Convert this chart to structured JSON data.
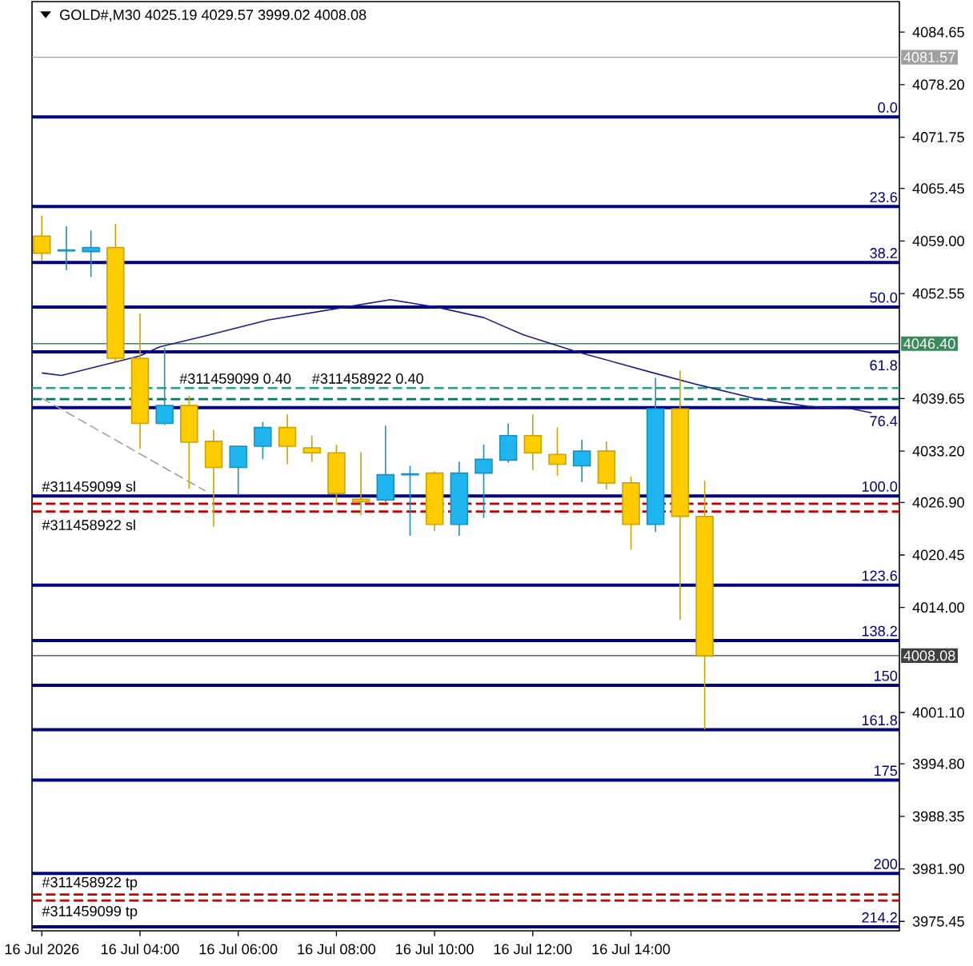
{
  "chart_data": {
    "type": "candlestick",
    "title": "GOLD#,M30 4025.19 4029.57 3999.02 4008.08",
    "x": [
      "2026-07-16T02:00",
      "2026-07-16T02:30",
      "2026-07-16T03:00",
      "2026-07-16T03:30",
      "2026-07-16T04:00",
      "2026-07-16T04:30",
      "2026-07-16T05:00",
      "2026-07-16T05:30",
      "2026-07-16T06:00",
      "2026-07-16T06:30",
      "2026-07-16T07:00",
      "2026-07-16T07:30",
      "2026-07-16T08:00",
      "2026-07-16T08:30",
      "2026-07-16T09:00",
      "2026-07-16T09:30",
      "2026-07-16T10:00",
      "2026-07-16T10:30",
      "2026-07-16T11:00",
      "2026-07-16T11:30",
      "2026-07-16T12:00",
      "2026-07-16T12:30",
      "2026-07-16T13:00",
      "2026-07-16T13:30",
      "2026-07-16T14:00",
      "2026-07-16T14:30",
      "2026-07-16T15:00",
      "2026-07-16T15:30"
    ],
    "xlim": [
      "2026-07-16T01:48",
      "2026-07-16T19:28"
    ],
    "xticks": [
      {
        "value": "2026-07-16T02:00",
        "label": "16 Jul 2026"
      },
      {
        "value": "2026-07-16T04:00",
        "label": "16 Jul 04:00"
      },
      {
        "value": "2026-07-16T06:00",
        "label": "16 Jul 06:00"
      },
      {
        "value": "2026-07-16T08:00",
        "label": "16 Jul 08:00"
      },
      {
        "value": "2026-07-16T10:00",
        "label": "16 Jul 10:00"
      },
      {
        "value": "2026-07-16T12:00",
        "label": "16 Jul 12:00"
      },
      {
        "value": "2026-07-16T14:00",
        "label": "16 Jul 14:00"
      }
    ],
    "ylim": [
      3974.3,
      4088.4
    ],
    "yticks": [
      {
        "value": 4084.65,
        "label": "4084.65"
      },
      {
        "value": 4078.2,
        "label": "4078.20"
      },
      {
        "value": 4071.75,
        "label": "4071.75"
      },
      {
        "value": 4065.45,
        "label": "4065.45"
      },
      {
        "value": 4059.0,
        "label": "4059.00"
      },
      {
        "value": 4052.55,
        "label": "4052.55"
      },
      {
        "value": 4039.65,
        "label": "4039.65"
      },
      {
        "value": 4033.2,
        "label": "4033.20"
      },
      {
        "value": 4026.9,
        "label": "4026.90"
      },
      {
        "value": 4020.45,
        "label": "4020.45"
      },
      {
        "value": 4014.0,
        "label": "4014.00"
      },
      {
        "value": 4001.1,
        "label": "4001.10"
      },
      {
        "value": 3994.8,
        "label": "3994.80"
      },
      {
        "value": 3988.35,
        "label": "3988.35"
      },
      {
        "value": 3981.9,
        "label": "3981.90"
      },
      {
        "value": 3975.45,
        "label": "3975.45"
      }
    ],
    "series": [
      {
        "ohlc": [
          [
            4059.6,
            4062.1,
            4056.6,
            4057.5
          ],
          [
            4057.8,
            4060.8,
            4055.4,
            4057.9
          ],
          [
            4057.7,
            4060.3,
            4054.6,
            4058.2
          ],
          [
            4058.2,
            4061.1,
            4044.2,
            4044.6
          ],
          [
            4044.6,
            4050.1,
            4033.5,
            4036.6
          ],
          [
            4036.6,
            4045.9,
            4036.4,
            4038.8
          ],
          [
            4038.8,
            4040.0,
            4028.6,
            4034.3
          ],
          [
            4034.4,
            4035.8,
            4023.9,
            4031.2
          ],
          [
            4031.2,
            4033.8,
            4027.8,
            4033.8
          ],
          [
            4033.8,
            4036.8,
            4032.2,
            4036.1
          ],
          [
            4036.1,
            4037.7,
            4031.6,
            4033.8
          ],
          [
            4033.6,
            4035.1,
            4031.9,
            4033.0
          ],
          [
            4033.0,
            4034.0,
            4026.6,
            4028.0
          ],
          [
            4027.3,
            4033.1,
            4025.3,
            4027.0
          ],
          [
            4027.2,
            4036.3,
            4026.9,
            4030.3
          ],
          [
            4030.3,
            4031.4,
            4022.8,
            4030.4
          ],
          [
            4030.5,
            4030.7,
            4023.4,
            4024.2
          ],
          [
            4024.2,
            4031.9,
            4022.8,
            4030.5
          ],
          [
            4030.5,
            4034.0,
            4025.0,
            4032.2
          ],
          [
            4032.1,
            4036.6,
            4031.8,
            4035.1
          ],
          [
            4035.1,
            4037.7,
            4030.9,
            4033.0
          ],
          [
            4032.8,
            4036.1,
            4030.2,
            4031.6
          ],
          [
            4031.4,
            4034.6,
            4029.4,
            4033.2
          ],
          [
            4033.2,
            4034.4,
            4028.5,
            4029.3
          ],
          [
            4029.3,
            4030.1,
            4021.1,
            4024.2
          ],
          [
            4024.2,
            4042.2,
            4023.3,
            4038.4
          ],
          [
            4038.4,
            4043.1,
            4012.5,
            4025.2
          ],
          [
            4025.19,
            4029.57,
            3999.02,
            4008.08
          ]
        ],
        "colors": [
          "#ffcc00",
          "#1fb5ee",
          "#1fb5ee",
          "#ffcc00",
          "#ffcc00",
          "#1fb5ee",
          "#ffcc00",
          "#ffcc00",
          "#1fb5ee",
          "#1fb5ee",
          "#ffcc00",
          "#ffcc00",
          "#ffcc00",
          "#ffcc00",
          "#1fb5ee",
          "#1fb5ee",
          "#ffcc00",
          "#1fb5ee",
          "#1fb5ee",
          "#1fb5ee",
          "#ffcc00",
          "#ffcc00",
          "#1fb5ee",
          "#ffcc00",
          "#ffcc00",
          "#1fb5ee",
          "#ffcc00",
          "#ffcc00"
        ]
      },
      {
        "type": "line",
        "color": "#1c1c8c",
        "x": [
          "2026-07-16T02:00",
          "2026-07-16T02:24",
          "2026-07-16T04:00",
          "2026-07-16T04:24",
          "2026-07-16T05:18",
          "2026-07-16T06:36",
          "2026-07-16T08:12",
          "2026-07-16T09:06",
          "2026-07-16T10:06",
          "2026-07-16T11:00",
          "2026-07-16T11:48",
          "2026-07-16T12:54",
          "2026-07-16T14:24",
          "2026-07-16T15:24",
          "2026-07-16T16:30",
          "2026-07-16T17:36",
          "2026-07-16T18:30",
          "2026-07-16T18:54"
        ],
        "values": [
          4042.8,
          4042.5,
          4044.9,
          4046.0,
          4047.3,
          4049.3,
          4050.9,
          4051.8,
          4050.8,
          4049.6,
          4047.5,
          4045.4,
          4042.9,
          4041.3,
          4039.7,
          4038.7,
          4038.4,
          4037.9
        ]
      },
      {
        "type": "line",
        "color": "#a0a0a0",
        "line_style": "dashed",
        "x": [
          "2026-07-16T02:00",
          "2026-07-16T05:20"
        ],
        "values": [
          4039.7,
          4028.3
        ]
      }
    ],
    "ref_lines": [
      {
        "axis": "y",
        "value": 4081.57,
        "label": "4081.57",
        "color": "#a0a0a0"
      },
      {
        "axis": "y",
        "value": 4046.4,
        "label": "4046.40",
        "color": "#3a8a5c"
      },
      {
        "axis": "y",
        "value": 4008.08,
        "label": "4008.08",
        "color": "#404040"
      },
      {
        "axis": "y",
        "value": 4074.24,
        "color": "#000080"
      },
      {
        "axis": "y",
        "value": 4063.23,
        "color": "#000080"
      },
      {
        "axis": "y",
        "value": 4056.36,
        "color": "#000080"
      },
      {
        "axis": "y",
        "value": 4050.9,
        "color": "#000080"
      },
      {
        "axis": "y",
        "value": 4045.4,
        "color": "#000080"
      },
      {
        "axis": "y",
        "value": 4038.55,
        "color": "#000080"
      },
      {
        "axis": "y",
        "value": 4027.7,
        "color": "#000080"
      },
      {
        "axis": "y",
        "value": 4016.75,
        "color": "#000080"
      },
      {
        "axis": "y",
        "value": 4009.95,
        "color": "#000080"
      },
      {
        "axis": "y",
        "value": 4004.45,
        "color": "#000080"
      },
      {
        "axis": "y",
        "value": 3999.0,
        "color": "#000080"
      },
      {
        "axis": "y",
        "value": 3992.8,
        "color": "#000080"
      },
      {
        "axis": "y",
        "value": 3981.35,
        "color": "#000080"
      },
      {
        "axis": "y",
        "value": 3974.8,
        "color": "#000080"
      },
      {
        "axis": "y",
        "value": 4040.95,
        "color": "#2a9d8f",
        "line_style": "dashed"
      },
      {
        "axis": "y",
        "value": 4039.58,
        "color": "#007a5e",
        "line_style": "dashed"
      },
      {
        "axis": "y",
        "value": 4026.75,
        "color": "#cc0000",
        "line_style": "dashed"
      },
      {
        "axis": "y",
        "value": 4025.78,
        "color": "#cc0000",
        "line_style": "dashed"
      },
      {
        "axis": "y",
        "value": 3978.76,
        "color": "#cc0000",
        "line_style": "dashed"
      },
      {
        "axis": "y",
        "value": 3978.02,
        "color": "#cc0000",
        "line_style": "dashed"
      }
    ],
    "annotations": [
      {
        "text": "0.0",
        "x": "2026-07-16T19:28",
        "y": 4074.24
      },
      {
        "text": "23.6",
        "x": "2026-07-16T19:28",
        "y": 4063.23
      },
      {
        "text": "38.2",
        "x": "2026-07-16T19:28",
        "y": 4056.36
      },
      {
        "text": "50.0",
        "x": "2026-07-16T19:28",
        "y": 4050.9
      },
      {
        "text": "61.8",
        "x": "2026-07-16T19:28",
        "y": 4045.4
      },
      {
        "text": "76.4",
        "x": "2026-07-16T19:28",
        "y": 4038.55
      },
      {
        "text": "100.0",
        "x": "2026-07-16T19:28",
        "y": 4027.7
      },
      {
        "text": "123.6",
        "x": "2026-07-16T19:28",
        "y": 4016.75
      },
      {
        "text": "138.2",
        "x": "2026-07-16T19:28",
        "y": 4009.95
      },
      {
        "text": "150",
        "x": "2026-07-16T19:28",
        "y": 4004.45
      },
      {
        "text": "161.8",
        "x": "2026-07-16T19:28",
        "y": 3999.0
      },
      {
        "text": "175",
        "x": "2026-07-16T19:28",
        "y": 3992.8
      },
      {
        "text": "200",
        "x": "2026-07-16T19:28",
        "y": 3981.35
      },
      {
        "text": "214.2",
        "x": "2026-07-16T19:28",
        "y": 3974.8
      },
      {
        "text": "#311459099 0.40",
        "x": "2026-07-16T04:46",
        "y": 4040.95
      },
      {
        "text": "#311458922 0.40",
        "x": "2026-07-16T07:28",
        "y": 4039.58
      },
      {
        "text": "#311459099 sl",
        "x": "2026-07-16T01:58",
        "y": 4026.75
      },
      {
        "text": "#311458922 sl",
        "x": "2026-07-16T01:58",
        "y": 4025.78
      },
      {
        "text": "#311458922 tp",
        "x": "2026-07-16T01:58",
        "y": 3978.76
      },
      {
        "text": "#311459099 tp",
        "x": "2026-07-16T01:58",
        "y": 3978.02
      }
    ]
  }
}
